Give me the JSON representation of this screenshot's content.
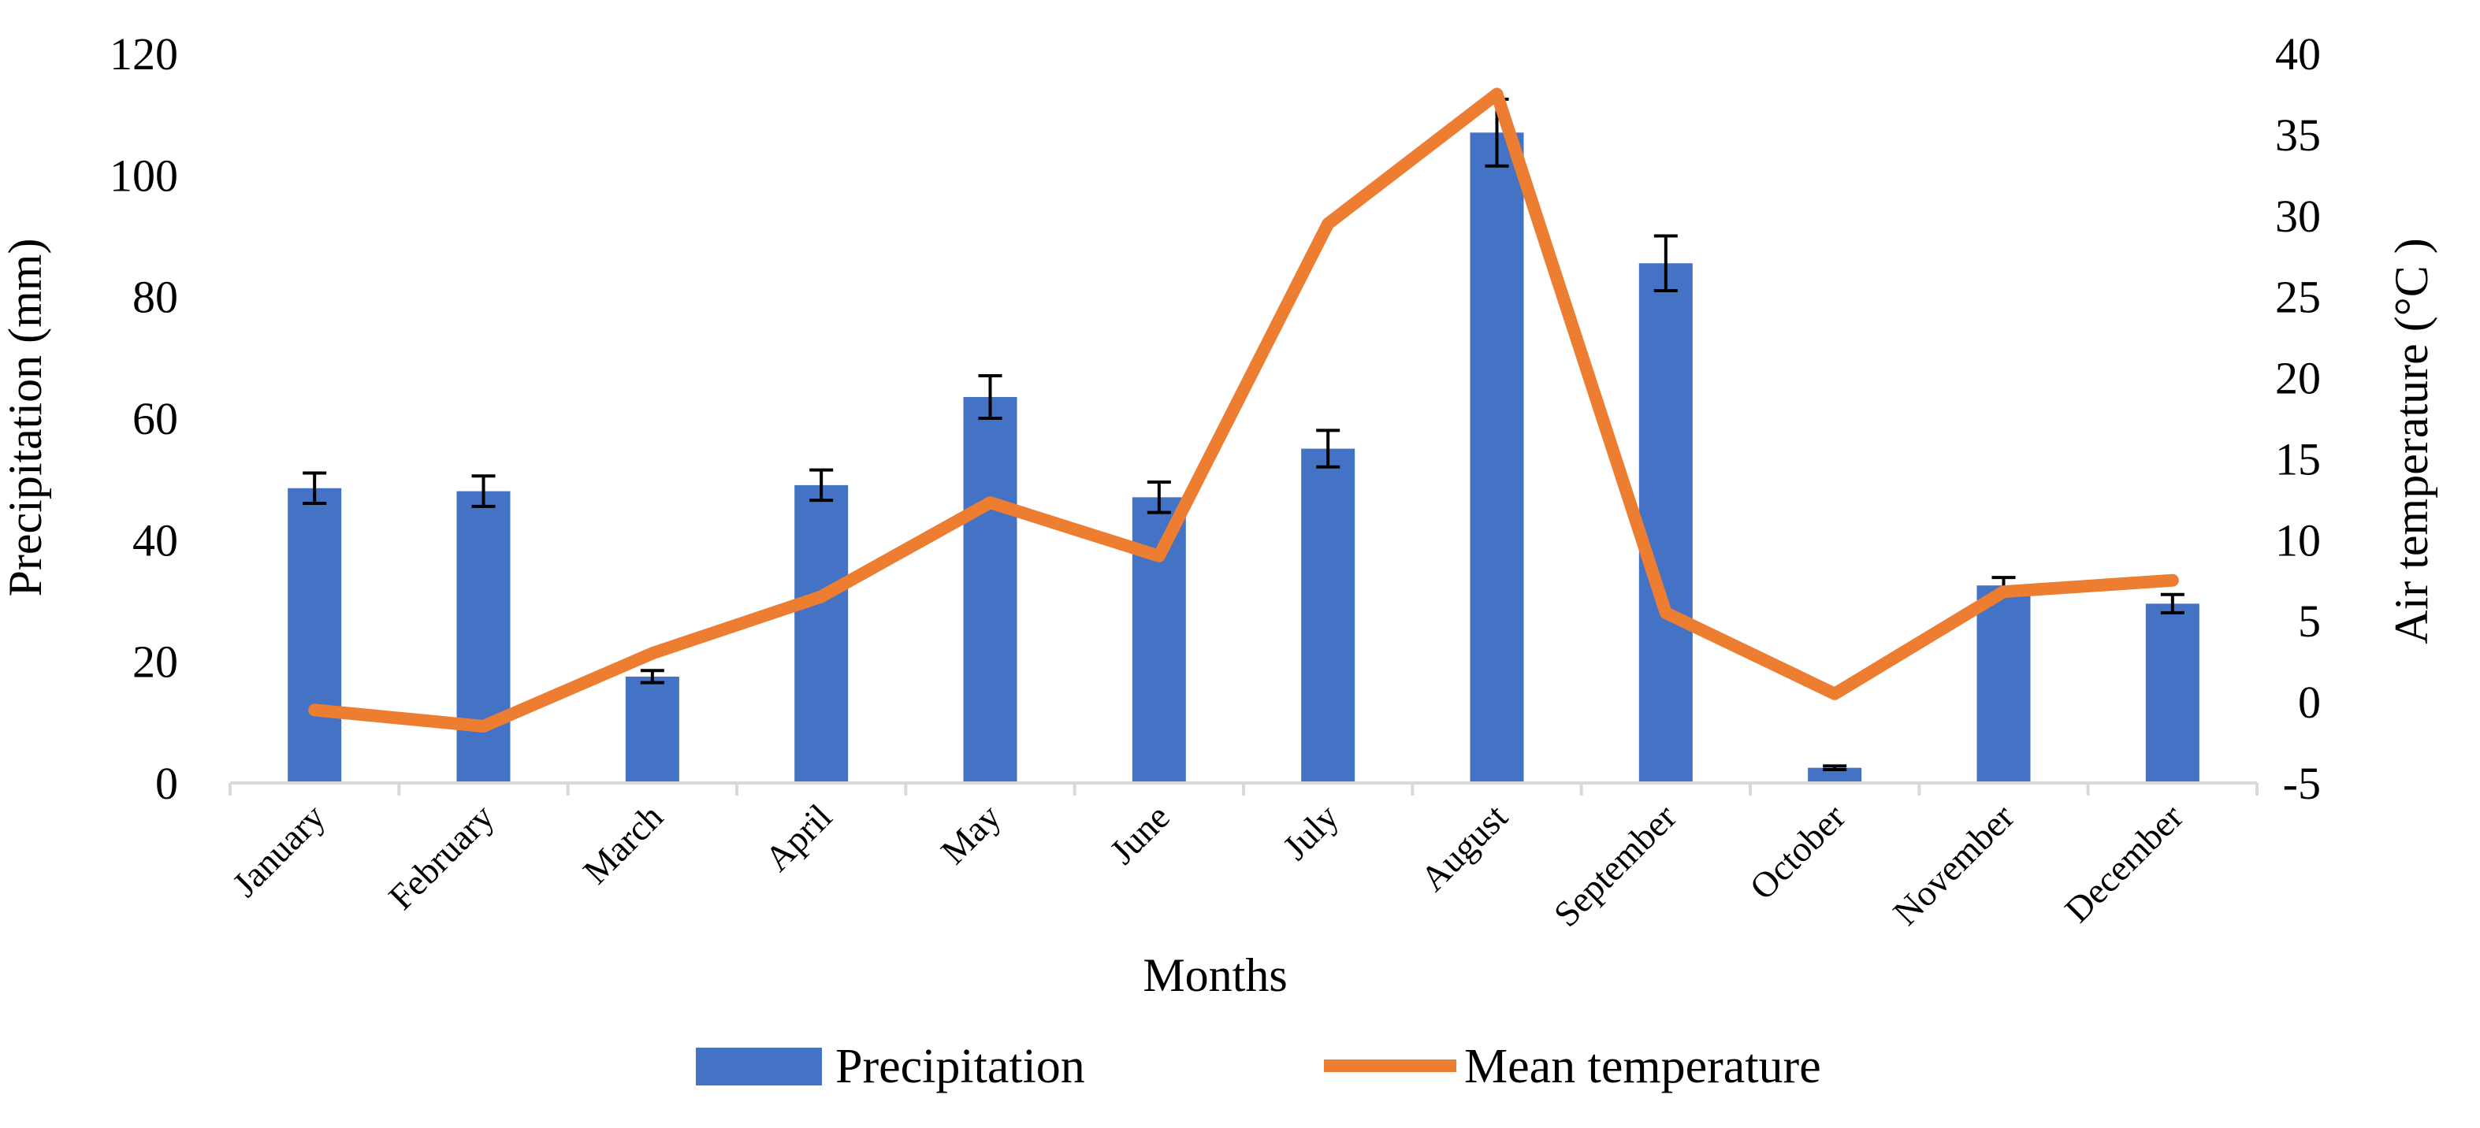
{
  "chart_data": {
    "type": "bar+line",
    "title": "",
    "xlabel": "Months",
    "ylabel_left": "Precipitation (mm)",
    "ylabel_right": "Air temperature (°C )",
    "categories": [
      "January",
      "February",
      "March",
      "April",
      "May",
      "June",
      "July",
      "August",
      "September",
      "October",
      "November",
      "December"
    ],
    "y_left": {
      "min": 0,
      "max": 120,
      "ticks": [
        "0",
        "20",
        "40",
        "60",
        "80",
        "100",
        "120"
      ]
    },
    "y_right": {
      "min": -5,
      "max": 40,
      "ticks": [
        "-5",
        "0",
        "5",
        "10",
        "15",
        "20",
        "25",
        "30",
        "35",
        "40"
      ]
    },
    "grid": false,
    "legend_position": "bottom-center",
    "series": [
      {
        "name": "Precipitation",
        "kind": "bar",
        "axis": "left",
        "color": "#4472C4",
        "values": [
          48.5,
          48,
          17.5,
          49,
          63.5,
          47,
          55,
          107,
          85.5,
          2.5,
          32.5,
          29.5
        ],
        "errors": [
          2.5,
          2.5,
          1,
          2.5,
          3.5,
          2.5,
          3,
          5.5,
          4.5,
          0.3,
          1.3,
          1.5
        ]
      },
      {
        "name": "Mean temperature",
        "kind": "line",
        "axis": "right",
        "color": "#ED7D31",
        "values": [
          -0.5,
          -1.5,
          3,
          6.5,
          12.3,
          9,
          29.5,
          37.5,
          5.5,
          0.5,
          6.8,
          7.5
        ]
      }
    ]
  }
}
